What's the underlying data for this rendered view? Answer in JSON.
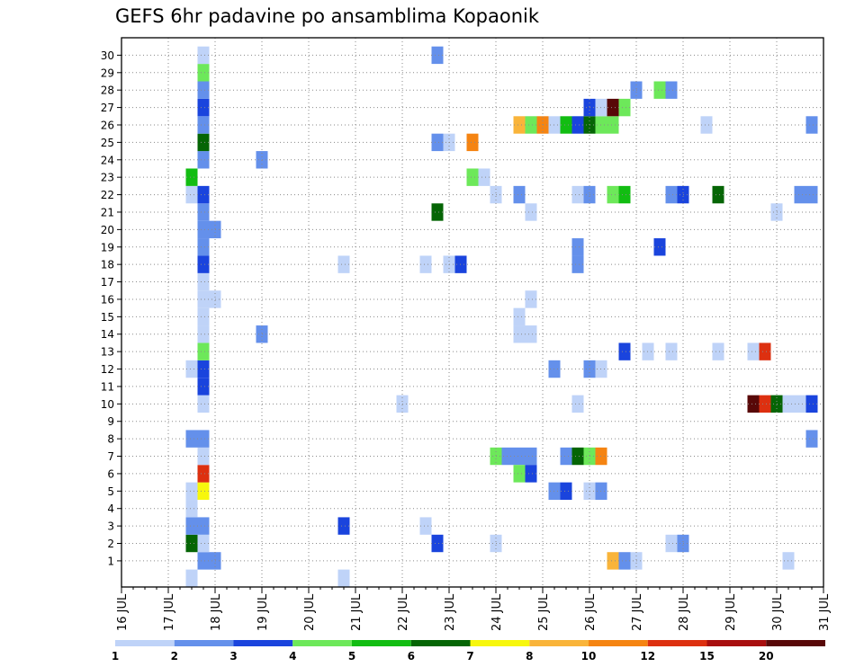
{
  "title": "GEFS 6hr padavine po ansamblima Kopaonik",
  "chart_data": {
    "type": "heatmap",
    "title": "GEFS 6hr padavine po ansamblima Kopaonik",
    "x_time_range": [
      "16 JUL 00z",
      "31 JUL 00z"
    ],
    "x_tick_labels": [
      "16 JUL",
      "17 JUL",
      "18 JUL",
      "19 JUL",
      "20 JUL",
      "21 JUL",
      "22 JUL",
      "23 JUL",
      "24 JUL",
      "25 JUL",
      "26 JUL",
      "27 JUL",
      "28 JUL",
      "29 JUL",
      "30 JUL",
      "31 JUL"
    ],
    "y_tick_labels": [
      "1",
      "2",
      "3",
      "4",
      "5",
      "6",
      "7",
      "8",
      "9",
      "10",
      "11",
      "12",
      "13",
      "14",
      "15",
      "16",
      "17",
      "18",
      "19",
      "20",
      "21",
      "22",
      "23",
      "24",
      "25",
      "26",
      "27",
      "28",
      "29",
      "30"
    ],
    "colorbar": {
      "tick_labels": [
        "1",
        "2",
        "3",
        "4",
        "5",
        "6",
        "7",
        "8",
        "10",
        "12",
        "15",
        "20"
      ],
      "colors": [
        "#bfd3f8",
        "#6490eb",
        "#1a44dd",
        "#6de85a",
        "#12bd12",
        "#056505",
        "#f7f70d",
        "#f9b43a",
        "#f58412",
        "#dd3010",
        "#a80e0e",
        "#580808"
      ]
    },
    "grid": true,
    "step_hours": 6,
    "cells": [
      {
        "t": "17 JUL 12z",
        "m": 0,
        "v": 1.5
      },
      {
        "t": "17 JUL 18z",
        "m": 1,
        "v": 2.5
      },
      {
        "t": "18 JUL 00z",
        "m": 1,
        "v": 2.5
      },
      {
        "t": "17 JUL 12z",
        "m": 2,
        "v": 6.5
      },
      {
        "t": "17 JUL 18z",
        "m": 2,
        "v": 1.5
      },
      {
        "t": "17 JUL 12z",
        "m": 3,
        "v": 2.5
      },
      {
        "t": "17 JUL 18z",
        "m": 3,
        "v": 2.5
      },
      {
        "t": "17 JUL 12z",
        "m": 4,
        "v": 1.5
      },
      {
        "t": "17 JUL 12z",
        "m": 5,
        "v": 1.5
      },
      {
        "t": "17 JUL 18z",
        "m": 5,
        "v": 7.5
      },
      {
        "t": "17 JUL 18z",
        "m": 6,
        "v": 12.5
      },
      {
        "t": "17 JUL 18z",
        "m": 7,
        "v": 1.5
      },
      {
        "t": "17 JUL 12z",
        "m": 8,
        "v": 2.5
      },
      {
        "t": "17 JUL 18z",
        "m": 8,
        "v": 2.5
      },
      {
        "t": "17 JUL 18z",
        "m": 10,
        "v": 1.5
      },
      {
        "t": "17 JUL 18z",
        "m": 11,
        "v": 3.5
      },
      {
        "t": "17 JUL 12z",
        "m": 12,
        "v": 1.5
      },
      {
        "t": "17 JUL 18z",
        "m": 12,
        "v": 3.5
      },
      {
        "t": "17 JUL 18z",
        "m": 13,
        "v": 4.5
      },
      {
        "t": "17 JUL 18z",
        "m": 14,
        "v": 1.5
      },
      {
        "t": "17 JUL 18z",
        "m": 15,
        "v": 1.5
      },
      {
        "t": "17 JUL 18z",
        "m": 16,
        "v": 1.5
      },
      {
        "t": "18 JUL 00z",
        "m": 16,
        "v": 1.5
      },
      {
        "t": "17 JUL 18z",
        "m": 17,
        "v": 1.5
      },
      {
        "t": "17 JUL 18z",
        "m": 18,
        "v": 3.5
      },
      {
        "t": "17 JUL 18z",
        "m": 19,
        "v": 2.5
      },
      {
        "t": "17 JUL 18z",
        "m": 20,
        "v": 2.5
      },
      {
        "t": "18 JUL 00z",
        "m": 20,
        "v": 2.5
      },
      {
        "t": "17 JUL 18z",
        "m": 21,
        "v": 2.5
      },
      {
        "t": "17 JUL 12z",
        "m": 22,
        "v": 1.5
      },
      {
        "t": "17 JUL 18z",
        "m": 22,
        "v": 3.5
      },
      {
        "t": "17 JUL 12z",
        "m": 23,
        "v": 5.5
      },
      {
        "t": "17 JUL 18z",
        "m": 24,
        "v": 2.5
      },
      {
        "t": "17 JUL 18z",
        "m": 25,
        "v": 6.5
      },
      {
        "t": "17 JUL 18z",
        "m": 26,
        "v": 2.5
      },
      {
        "t": "17 JUL 18z",
        "m": 27,
        "v": 3.5
      },
      {
        "t": "17 JUL 18z",
        "m": 28,
        "v": 2.5
      },
      {
        "t": "17 JUL 18z",
        "m": 29,
        "v": 4.5
      },
      {
        "t": "17 JUL 18z",
        "m": 30,
        "v": 1.5
      },
      {
        "t": "19 JUL 00z",
        "m": 14,
        "v": 2.5
      },
      {
        "t": "19 JUL 00z",
        "m": 24,
        "v": 2.5
      },
      {
        "t": "20 JUL 18z",
        "m": 0,
        "v": 1.5
      },
      {
        "t": "20 JUL 18z",
        "m": 3,
        "v": 3.5
      },
      {
        "t": "20 JUL 18z",
        "m": 18,
        "v": 1.5
      },
      {
        "t": "22 JUL 00z",
        "m": 10,
        "v": 1.5
      },
      {
        "t": "22 JUL 12z",
        "m": 3,
        "v": 1.5
      },
      {
        "t": "22 JUL 12z",
        "m": 18,
        "v": 1.5
      },
      {
        "t": "22 JUL 18z",
        "m": 2,
        "v": 3.5
      },
      {
        "t": "22 JUL 18z",
        "m": 21,
        "v": 6.5
      },
      {
        "t": "22 JUL 18z",
        "m": 25,
        "v": 2.5
      },
      {
        "t": "23 JUL 00z",
        "m": 25,
        "v": 1.5
      },
      {
        "t": "22 JUL 18z",
        "m": 30,
        "v": 2.5
      },
      {
        "t": "23 JUL 00z",
        "m": 18,
        "v": 1.5
      },
      {
        "t": "23 JUL 06z",
        "m": 18,
        "v": 3.5
      },
      {
        "t": "23 JUL 12z",
        "m": 23,
        "v": 4.5
      },
      {
        "t": "23 JUL 18z",
        "m": 23,
        "v": 1.5
      },
      {
        "t": "23 JUL 12z",
        "m": 25,
        "v": 11
      },
      {
        "t": "24 JUL 00z",
        "m": 2,
        "v": 1.5
      },
      {
        "t": "24 JUL 00z",
        "m": 7,
        "v": 4.5
      },
      {
        "t": "24 JUL 06z",
        "m": 7,
        "v": 2.5
      },
      {
        "t": "24 JUL 12z",
        "m": 7,
        "v": 2.5
      },
      {
        "t": "24 JUL 18z",
        "m": 7,
        "v": 2.5
      },
      {
        "t": "24 JUL 00z",
        "m": 22,
        "v": 1.5
      },
      {
        "t": "24 JUL 12z",
        "m": 6,
        "v": 4.5
      },
      {
        "t": "24 JUL 18z",
        "m": 6,
        "v": 3.5
      },
      {
        "t": "24 JUL 12z",
        "m": 14,
        "v": 1.5
      },
      {
        "t": "24 JUL 18z",
        "m": 14,
        "v": 1.5
      },
      {
        "t": "24 JUL 12z",
        "m": 15,
        "v": 1.5
      },
      {
        "t": "24 JUL 12z",
        "m": 22,
        "v": 2.5
      },
      {
        "t": "24 JUL 18z",
        "m": 16,
        "v": 1.5
      },
      {
        "t": "24 JUL 18z",
        "m": 21,
        "v": 1.5
      },
      {
        "t": "24 JUL 12z",
        "m": 26,
        "v": 9
      },
      {
        "t": "24 JUL 18z",
        "m": 26,
        "v": 4.5
      },
      {
        "t": "25 JUL 00z",
        "m": 26,
        "v": 11
      },
      {
        "t": "25 JUL 06z",
        "m": 26,
        "v": 1.5
      },
      {
        "t": "25 JUL 12z",
        "m": 26,
        "v": 5.5
      },
      {
        "t": "25 JUL 18z",
        "m": 26,
        "v": 3.5
      },
      {
        "t": "26 JUL 00z",
        "m": 26,
        "v": 6.5
      },
      {
        "t": "26 JUL 06z",
        "m": 26,
        "v": 4.5
      },
      {
        "t": "26 JUL 12z",
        "m": 26,
        "v": 4.5
      },
      {
        "t": "25 JUL 06z",
        "m": 5,
        "v": 2.5
      },
      {
        "t": "25 JUL 12z",
        "m": 5,
        "v": 3.5
      },
      {
        "t": "25 JUL 06z",
        "m": 12,
        "v": 2.5
      },
      {
        "t": "25 JUL 12z",
        "m": 7,
        "v": 2.5
      },
      {
        "t": "25 JUL 18z",
        "m": 7,
        "v": 6.5
      },
      {
        "t": "26 JUL 00z",
        "m": 7,
        "v": 4.5
      },
      {
        "t": "26 JUL 06z",
        "m": 7,
        "v": 11
      },
      {
        "t": "25 JUL 18z",
        "m": 10,
        "v": 1.5
      },
      {
        "t": "25 JUL 18z",
        "m": 18,
        "v": 2.5
      },
      {
        "t": "25 JUL 18z",
        "m": 19,
        "v": 2.5
      },
      {
        "t": "25 JUL 18z",
        "m": 22,
        "v": 1.5
      },
      {
        "t": "26 JUL 00z",
        "m": 22,
        "v": 2.5
      },
      {
        "t": "26 JUL 00z",
        "m": 5,
        "v": 1.5
      },
      {
        "t": "26 JUL 06z",
        "m": 5,
        "v": 2.5
      },
      {
        "t": "26 JUL 00z",
        "m": 12,
        "v": 2.5
      },
      {
        "t": "26 JUL 06z",
        "m": 12,
        "v": 1.5
      },
      {
        "t": "26 JUL 00z",
        "m": 27,
        "v": 3.5
      },
      {
        "t": "26 JUL 06z",
        "m": 27,
        "v": 1.5
      },
      {
        "t": "26 JUL 12z",
        "m": 27,
        "v": 25
      },
      {
        "t": "26 JUL 18z",
        "m": 27,
        "v": 4.5
      },
      {
        "t": "26 JUL 12z",
        "m": 1,
        "v": 9
      },
      {
        "t": "26 JUL 18z",
        "m": 1,
        "v": 2.5
      },
      {
        "t": "27 JUL 00z",
        "m": 1,
        "v": 1.5
      },
      {
        "t": "26 JUL 12z",
        "m": 22,
        "v": 4.5
      },
      {
        "t": "26 JUL 18z",
        "m": 22,
        "v": 5.5
      },
      {
        "t": "26 JUL 18z",
        "m": 13,
        "v": 3.5
      },
      {
        "t": "27 JUL 00z",
        "m": 28,
        "v": 2.5
      },
      {
        "t": "27 JUL 06z",
        "m": 13,
        "v": 1.5
      },
      {
        "t": "27 JUL 12z",
        "m": 19,
        "v": 3.5
      },
      {
        "t": "27 JUL 12z",
        "m": 28,
        "v": 4.5
      },
      {
        "t": "27 JUL 18z",
        "m": 28,
        "v": 2.5
      },
      {
        "t": "27 JUL 18z",
        "m": 2,
        "v": 1.5
      },
      {
        "t": "28 JUL 00z",
        "m": 2,
        "v": 2.5
      },
      {
        "t": "27 JUL 18z",
        "m": 13,
        "v": 1.5
      },
      {
        "t": "27 JUL 18z",
        "m": 22,
        "v": 2.5
      },
      {
        "t": "28 JUL 00z",
        "m": 22,
        "v": 3.5
      },
      {
        "t": "28 JUL 12z",
        "m": 26,
        "v": 1.5
      },
      {
        "t": "28 JUL 18z",
        "m": 13,
        "v": 1.5
      },
      {
        "t": "28 JUL 18z",
        "m": 22,
        "v": 6.5
      },
      {
        "t": "29 JUL 12z",
        "m": 10,
        "v": 20
      },
      {
        "t": "29 JUL 18z",
        "m": 10,
        "v": 14
      },
      {
        "t": "30 JUL 00z",
        "m": 10,
        "v": 6.5
      },
      {
        "t": "30 JUL 06z",
        "m": 10,
        "v": 1.5
      },
      {
        "t": "30 JUL 12z",
        "m": 10,
        "v": 1.5
      },
      {
        "t": "30 JUL 18z",
        "m": 10,
        "v": 3.5
      },
      {
        "t": "29 JUL 12z",
        "m": 13,
        "v": 1.5
      },
      {
        "t": "29 JUL 18z",
        "m": 13,
        "v": 14
      },
      {
        "t": "30 JUL 00z",
        "m": 21,
        "v": 1.5
      },
      {
        "t": "30 JUL 06z",
        "m": 1,
        "v": 1.5
      },
      {
        "t": "30 JUL 12z",
        "m": 22,
        "v": 2.5
      },
      {
        "t": "30 JUL 18z",
        "m": 22,
        "v": 2.5
      },
      {
        "t": "30 JUL 18z",
        "m": 8,
        "v": 2.5
      },
      {
        "t": "30 JUL 18z",
        "m": 26,
        "v": 2.5
      }
    ]
  }
}
